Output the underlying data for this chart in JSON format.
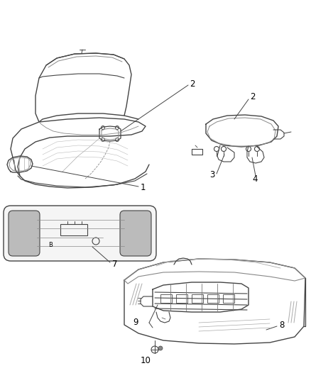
{
  "background_color": "#ffffff",
  "line_color": "#444444",
  "fig_width": 4.38,
  "fig_height": 5.33,
  "dpi": 100,
  "label_fontsize": 8.5
}
